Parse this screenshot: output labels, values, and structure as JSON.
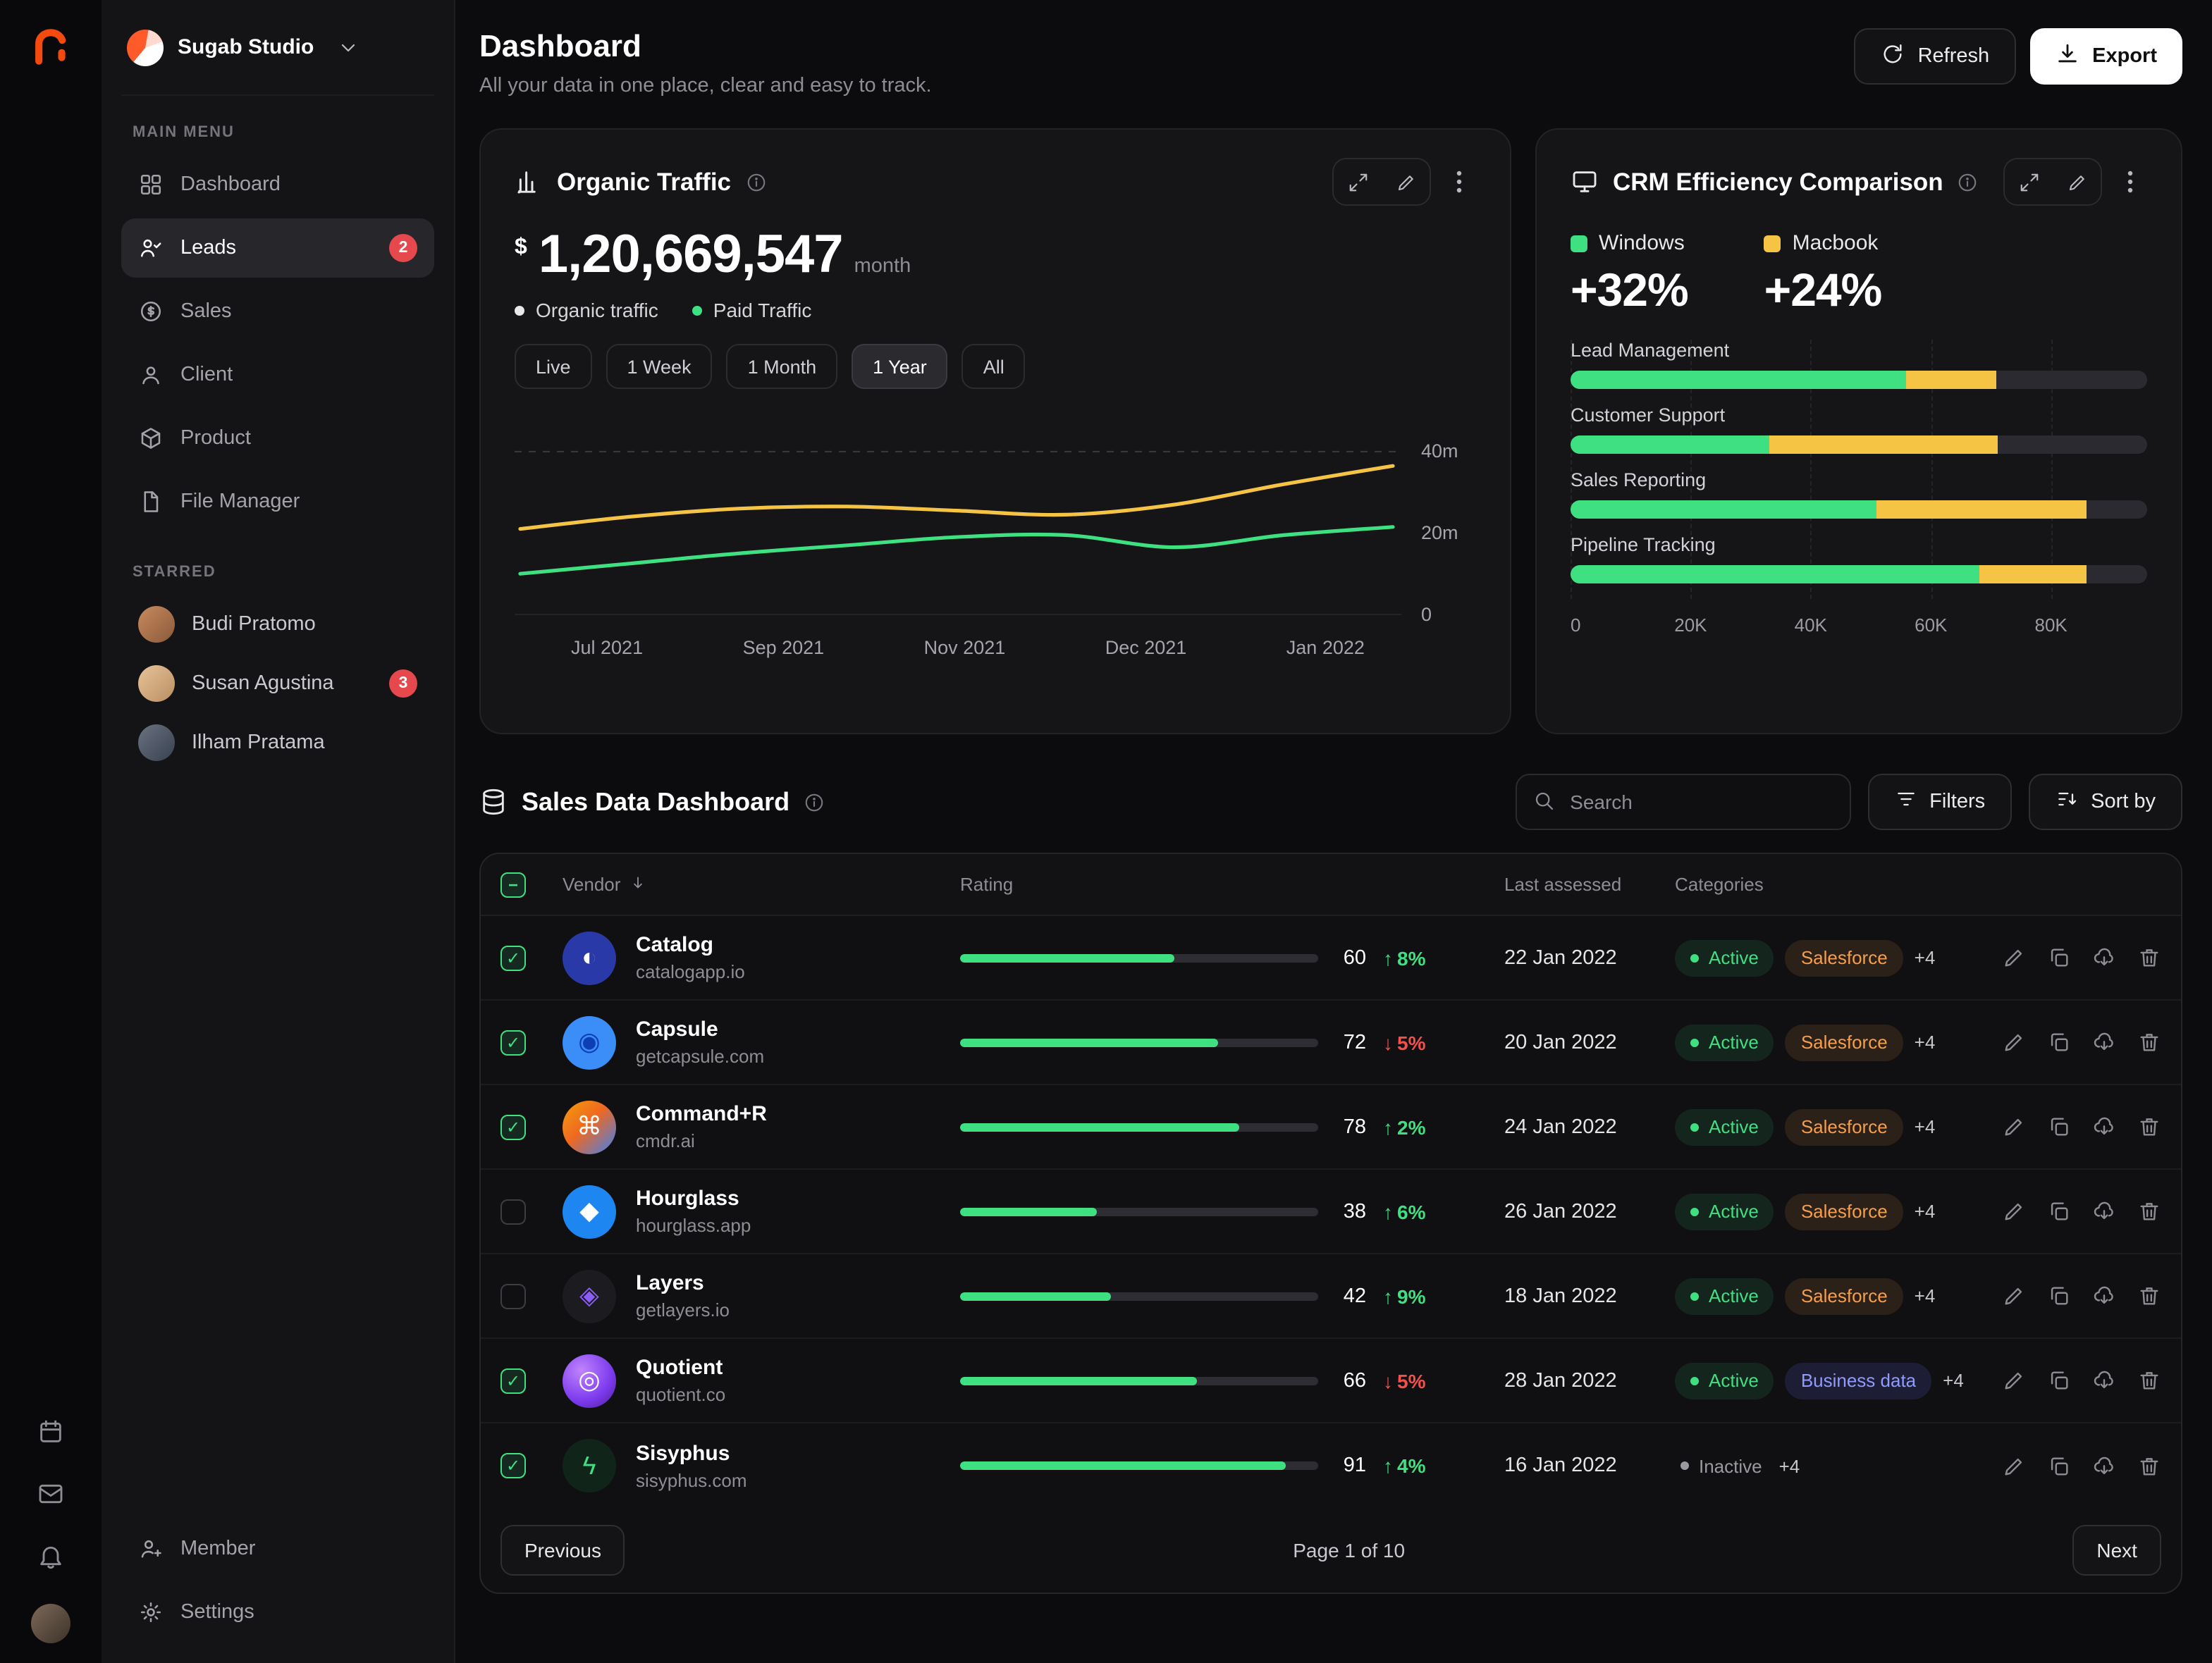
{
  "colors": {
    "green": "#3fe081",
    "yellow": "#f6c445",
    "red": "#f4504b",
    "brand_orange": "#f4490f",
    "badge_red": "#e5484d"
  },
  "sidebar": {
    "workspace_name": "Sugab Studio",
    "main_menu_label": "MAIN MENU",
    "items": [
      {
        "label": "Dashboard"
      },
      {
        "label": "Leads",
        "badge": "2"
      },
      {
        "label": "Sales"
      },
      {
        "label": "Client"
      },
      {
        "label": "Product"
      },
      {
        "label": "File Manager"
      }
    ],
    "starred_label": "STARRED",
    "starred": [
      {
        "name": "Budi Pratomo"
      },
      {
        "name": "Susan Agustina",
        "badge": "3"
      },
      {
        "name": "Ilham Pratama"
      }
    ],
    "footer_items": [
      {
        "label": "Member"
      },
      {
        "label": "Settings"
      }
    ]
  },
  "header": {
    "title": "Dashboard",
    "subtitle": "All your data in one place, clear and easy to track.",
    "refresh_label": "Refresh",
    "export_label": "Export"
  },
  "organic_traffic": {
    "title": "Organic Traffic",
    "currency": "$",
    "value": "1,20,669,547",
    "period": "month",
    "legend": [
      {
        "label": "Organic traffic",
        "color": "#e8e8ea"
      },
      {
        "label": "Paid Traffic",
        "color": "#3fe081"
      }
    ],
    "range_filters": [
      "Live",
      "1 Week",
      "1 Month",
      "1 Year",
      "All"
    ],
    "active_filter": "1 Year",
    "chart_data": {
      "type": "line",
      "unit": "millions",
      "x_ticks": [
        "Jul 2021",
        "Sep 2021",
        "Nov 2021",
        "Dec 2021",
        "Jan 2022"
      ],
      "y_ticks": [
        "40m",
        "20m",
        "0"
      ],
      "ylim": [
        0,
        45
      ],
      "grid": "dashed line at 40m",
      "series": [
        {
          "name": "Paid Traffic",
          "color": "#f6c445",
          "values": [
            21,
            24,
            26,
            26.5,
            25.5,
            24.5,
            27,
            32,
            36.5
          ]
        },
        {
          "name": "Organic Traffic",
          "color": "#3fe081",
          "values": [
            10,
            12.5,
            15,
            17,
            19,
            19.5,
            16.5,
            19.5,
            21.5
          ]
        }
      ]
    }
  },
  "crm": {
    "title": "CRM Efficiency Comparison",
    "legend": [
      {
        "label": "Windows",
        "color": "#3fe081",
        "delta": "+32%"
      },
      {
        "label": "Macbook",
        "color": "#f6c445",
        "delta": "+24%"
      }
    ],
    "chart_data": {
      "type": "bar",
      "orientation": "horizontal-stacked",
      "categories": [
        "Lead Management",
        "Customer Support",
        "Sales Reporting",
        "Pipeline Tracking"
      ],
      "series": [
        {
          "name": "Windows",
          "color": "#3fe081",
          "values": [
            56,
            33,
            51,
            68
          ]
        },
        {
          "name": "Macbook",
          "color": "#f6c445",
          "values": [
            15,
            38,
            35,
            18
          ]
        }
      ],
      "x_ticks": [
        "0",
        "20K",
        "40K",
        "60K",
        "80K"
      ],
      "xmax": 80,
      "plot_max": 96,
      "unit": "K"
    }
  },
  "sales": {
    "title": "Sales Data Dashboard",
    "search_placeholder": "Search",
    "filters_label": "Filters",
    "sort_label": "Sort by",
    "columns": {
      "vendor": "Vendor",
      "rating": "Rating",
      "last_assessed": "Last assessed",
      "categories": "Categories"
    },
    "rows": [
      {
        "vendor": "Catalog",
        "domain": "catalogapp.io",
        "checked": true,
        "rating": 60,
        "trend": "up",
        "delta": "8%",
        "date": "22 Jan 2022",
        "status": "Active",
        "category": "Salesforce",
        "category_type": "salesforce",
        "extra": "+4",
        "logo": {
          "bg": "#2a39a8",
          "glyph": "◐",
          "color": "#ffffff"
        }
      },
      {
        "vendor": "Capsule",
        "domain": "getcapsule.com",
        "checked": true,
        "rating": 72,
        "trend": "down",
        "delta": "5%",
        "date": "20 Jan 2022",
        "status": "Active",
        "category": "Salesforce",
        "category_type": "salesforce",
        "extra": "+4",
        "logo": {
          "bg": "#3b8df7",
          "glyph": "◉",
          "color": "#0d3fb2"
        }
      },
      {
        "vendor": "Command+R",
        "domain": "cmdr.ai",
        "checked": true,
        "rating": 78,
        "trend": "up",
        "delta": "2%",
        "date": "24 Jan 2022",
        "status": "Active",
        "category": "Salesforce",
        "category_type": "salesforce",
        "extra": "+4",
        "logo": {
          "bg": "linear-gradient(135deg,#f59e0b 0%,#ef6820 45%,#3b82f6 100%)",
          "glyph": "⌘",
          "color": "#ffffff"
        }
      },
      {
        "vendor": "Hourglass",
        "domain": "hourglass.app",
        "checked": false,
        "rating": 38,
        "trend": "up",
        "delta": "6%",
        "date": "26 Jan 2022",
        "status": "Active",
        "category": "Salesforce",
        "category_type": "salesforce",
        "extra": "+4",
        "logo": {
          "bg": "#1e86f0",
          "glyph": "◆",
          "color": "#ffffff"
        }
      },
      {
        "vendor": "Layers",
        "domain": "getlayers.io",
        "checked": false,
        "rating": 42,
        "trend": "up",
        "delta": "9%",
        "date": "18 Jan 2022",
        "status": "Active",
        "category": "Salesforce",
        "category_type": "salesforce",
        "extra": "+4",
        "logo": {
          "bg": "#1b1b20",
          "glyph": "◈",
          "color": "#8b5cf6"
        }
      },
      {
        "vendor": "Quotient",
        "domain": "quotient.co",
        "checked": true,
        "rating": 66,
        "trend": "down",
        "delta": "5%",
        "date": "28 Jan 2022",
        "status": "Active",
        "category": "Business data",
        "category_type": "business",
        "extra": "+4",
        "logo": {
          "bg": "radial-gradient(circle at 35% 30%,#c084fc,#7c3aed 60%,#4c1d95)",
          "glyph": "◎",
          "color": "#ffffff"
        }
      },
      {
        "vendor": "Sisyphus",
        "domain": "sisyphus.com",
        "checked": true,
        "rating": 91,
        "trend": "up",
        "delta": "4%",
        "date": "16 Jan 2022",
        "status": "Inactive",
        "category": null,
        "category_type": null,
        "extra": "+4",
        "logo": {
          "bg": "#10241a",
          "glyph": "ϟ",
          "color": "#3fe081"
        }
      }
    ],
    "pagination": {
      "previous": "Previous",
      "label": "Page 1 of 10",
      "next": "Next"
    }
  }
}
